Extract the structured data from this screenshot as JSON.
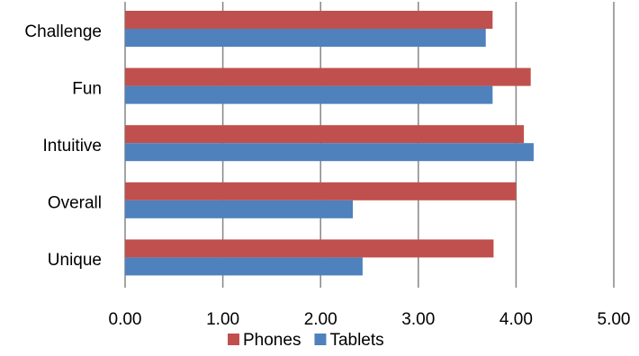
{
  "chart_data": {
    "type": "bar",
    "orientation": "horizontal",
    "categories": [
      "Challenge",
      "Fun",
      "Intuitive",
      "Overall",
      "Unique"
    ],
    "series": [
      {
        "name": "Phones",
        "color": "#C0504D",
        "values": [
          3.76,
          4.15,
          4.08,
          4.0,
          3.77
        ]
      },
      {
        "name": "Tablets",
        "color": "#4F81BD",
        "values": [
          3.69,
          3.76,
          4.18,
          2.33,
          2.43
        ]
      }
    ],
    "xlim": [
      0,
      5
    ],
    "xticks": [
      "0.00",
      "1.00",
      "2.00",
      "3.00",
      "4.00",
      "5.00"
    ],
    "grid": true,
    "legend_position": "bottom",
    "title": "",
    "xlabel": "",
    "ylabel": ""
  }
}
